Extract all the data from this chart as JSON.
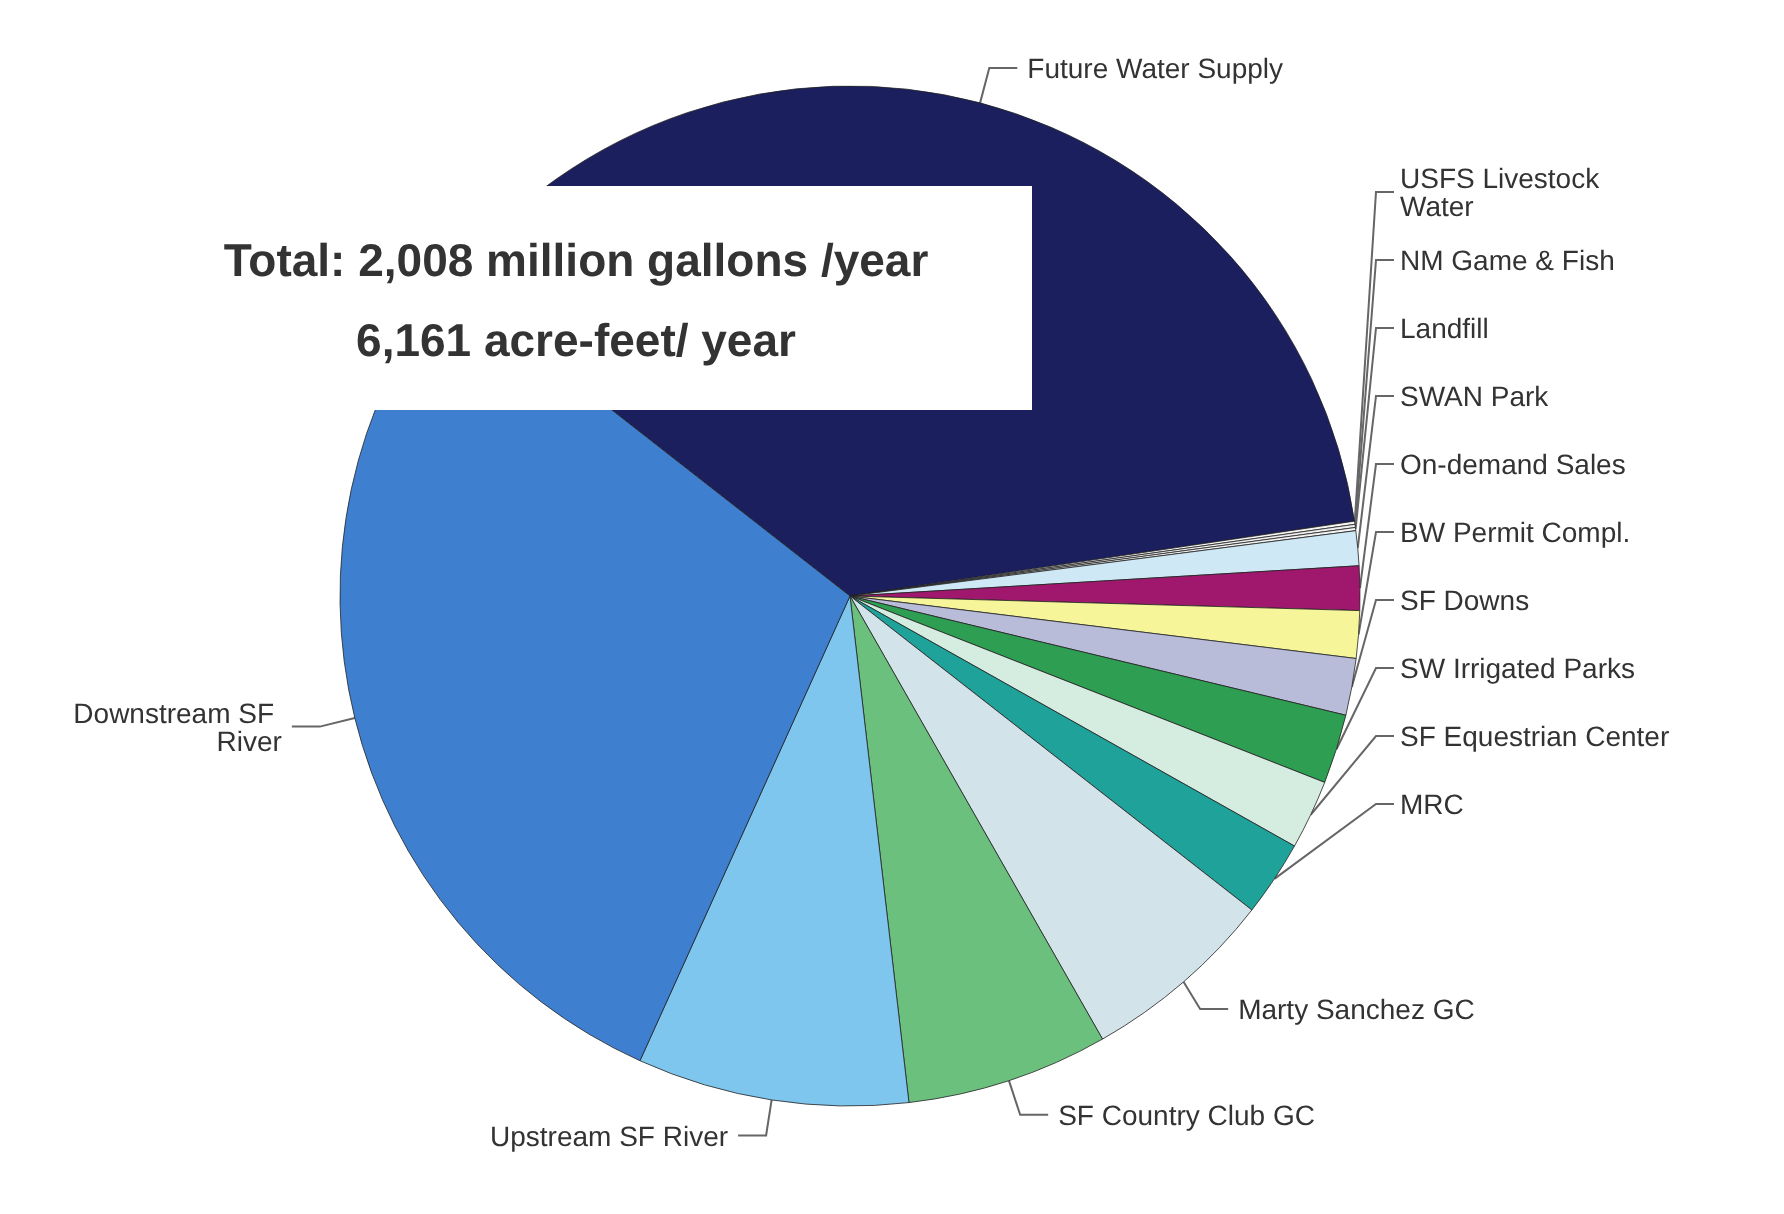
{
  "chart_data": {
    "type": "pie",
    "categories": [
      "Future Water Supply",
      "USFS Livestock Water",
      "NM Game & Fish",
      "Landfill",
      "SWAN Park",
      "On-demand Sales",
      "BW Permit Compl.",
      "SF Downs",
      "SW Irrigated Parks",
      "SF Equestrian Center",
      "MRC",
      "Marty Sanchez GC",
      "SF Country Club GC",
      "Upstream SF River",
      "Downstream SF River"
    ],
    "values": [
      37.1,
      0.1,
      0.1,
      0.1,
      1.1,
      1.4,
      1.5,
      1.8,
      2.2,
      2.2,
      2.4,
      6.2,
      6.4,
      8.6,
      28.8
    ],
    "colors": [
      "#1b1f5e",
      "#f4f4f4",
      "#eeeeee",
      "#f4f4f4",
      "#cfe8f5",
      "#a0186e",
      "#f7f59a",
      "#b8bcd8",
      "#2e9e52",
      "#d4ede0",
      "#1fa29a",
      "#d2e4ea",
      "#6cc07e",
      "#7fc6ee",
      "#3f7fcf"
    ],
    "annotations": [
      "Total: 2,008 million gallons /year",
      "6,161 acre-feet/ year"
    ],
    "legend": false
  }
}
